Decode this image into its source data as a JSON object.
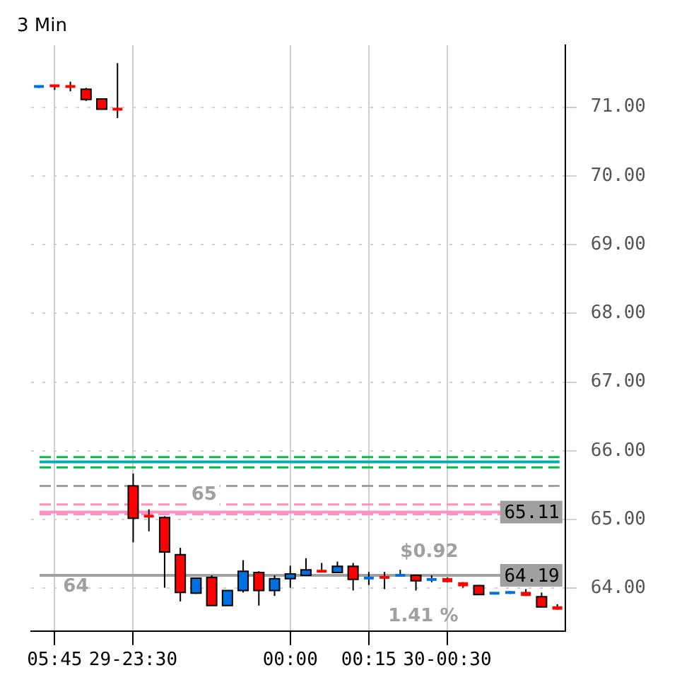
{
  "chart_data": {
    "type": "candlestick",
    "title": "3 Min",
    "categories": [
      null,
      "05:45",
      null,
      null,
      null,
      null,
      "29-23:30",
      null,
      null,
      null,
      null,
      null,
      null,
      null,
      null,
      null,
      "00:00",
      null,
      null,
      null,
      null,
      "00:15",
      null,
      null,
      null,
      null,
      "30-00:30",
      null,
      null,
      null,
      null,
      null,
      null,
      null
    ],
    "ohlc": [
      [
        71.29,
        71.3,
        71.28,
        71.3
      ],
      [
        71.31,
        71.31,
        71.25,
        71.3
      ],
      [
        71.3,
        71.37,
        71.23,
        71.28
      ],
      [
        71.26,
        71.28,
        71.09,
        71.11
      ],
      [
        71.12,
        71.12,
        70.97,
        70.97
      ],
      [
        70.97,
        71.64,
        70.84,
        70.97
      ],
      [
        65.49,
        65.67,
        64.67,
        65.02
      ],
      [
        65.07,
        65.15,
        64.83,
        65.03
      ],
      [
        65.03,
        65.05,
        64.01,
        64.53
      ],
      [
        64.49,
        64.59,
        63.81,
        63.94
      ],
      [
        63.93,
        64.15,
        63.92,
        64.15
      ],
      [
        64.16,
        64.19,
        63.75,
        63.75
      ],
      [
        63.75,
        63.97,
        63.75,
        63.97
      ],
      [
        63.97,
        64.41,
        63.94,
        64.25
      ],
      [
        64.23,
        64.25,
        63.75,
        63.97
      ],
      [
        63.97,
        64.19,
        63.89,
        64.14
      ],
      [
        64.14,
        64.33,
        64.01,
        64.21
      ],
      [
        64.19,
        64.44,
        64.19,
        64.27
      ],
      [
        64.27,
        64.37,
        64.23,
        64.23
      ],
      [
        64.23,
        64.39,
        64.23,
        64.32
      ],
      [
        64.32,
        64.37,
        63.97,
        64.13
      ],
      [
        64.13,
        64.24,
        64.05,
        64.17
      ],
      [
        64.16,
        64.24,
        63.99,
        64.16
      ],
      [
        64.18,
        64.27,
        64.18,
        64.19
      ],
      [
        64.19,
        64.19,
        63.97,
        64.11
      ],
      [
        64.12,
        64.19,
        64.09,
        64.13
      ],
      [
        64.15,
        64.16,
        64.09,
        64.09
      ],
      [
        64.09,
        64.09,
        64.01,
        64.03
      ],
      [
        64.04,
        64.05,
        63.91,
        63.91
      ],
      [
        63.91,
        63.93,
        63.91,
        63.93
      ],
      [
        63.93,
        63.96,
        63.92,
        63.94
      ],
      [
        63.95,
        63.99,
        63.89,
        63.89
      ],
      [
        63.88,
        63.94,
        63.73,
        63.73
      ],
      [
        63.74,
        63.77,
        63.69,
        63.69
      ]
    ],
    "colors": [
      "#0070e0",
      "#ff0000",
      "#ff0000",
      "#ff0000",
      "#ff0000",
      "#ff0000",
      "#ff0000",
      "#ff0000",
      "#ff0000",
      "#ff0000",
      "#0070e0",
      "#ff0000",
      "#0070e0",
      "#0070e0",
      "#ff0000",
      "#0070e0",
      "#0070e0",
      "#0070e0",
      "#ff0000",
      "#0070e0",
      "#ff0000",
      "#0070e0",
      "#ff0000",
      "#0070e0",
      "#ff0000",
      "#0070e0",
      "#ff0000",
      "#ff0000",
      "#ff0000",
      "#0070e0",
      "#0070e0",
      "#ff0000",
      "#ff0000",
      "#ff0000"
    ],
    "ylim": [
      63.38,
      71.9
    ],
    "yticks": [
      {
        "value": 64,
        "label": "64.00"
      },
      {
        "value": 65,
        "label": "65.00"
      },
      {
        "value": 66,
        "label": "66.00"
      },
      {
        "value": 67,
        "label": "67.00"
      },
      {
        "value": 68,
        "label": "68.00"
      },
      {
        "value": 69,
        "label": "69.00"
      },
      {
        "value": 70,
        "label": "70.00"
      },
      {
        "value": 71,
        "label": "71.00"
      }
    ],
    "grid": true,
    "ref_lines": [
      {
        "axis": "y",
        "value": 65.91,
        "color": "#00c040",
        "line_style": "dashed"
      },
      {
        "axis": "y",
        "value": 65.84,
        "color": "#00b0b0",
        "line_style": "solid"
      },
      {
        "axis": "y",
        "value": 65.76,
        "color": "#00c040",
        "line_style": "dashed"
      },
      {
        "axis": "y",
        "value": 65.49,
        "color": "#a0a0a0",
        "line_style": "dashed"
      },
      {
        "axis": "y",
        "value": 65.22,
        "color": "#ff90c0",
        "line_style": "dashed"
      },
      {
        "axis": "y",
        "value": 65.11,
        "label": "65.11",
        "color": "#ff90c0",
        "line_style": "solid"
      },
      {
        "axis": "y",
        "value": 65.08,
        "color": "#ff90c0",
        "line_style": "dashed"
      },
      {
        "axis": "y",
        "value": 64.19,
        "label": "64.19",
        "color": "#a0a0a0",
        "line_style": "solid"
      }
    ],
    "annotations": [
      "65",
      "64",
      "$0.92",
      "1.41 %"
    ]
  }
}
